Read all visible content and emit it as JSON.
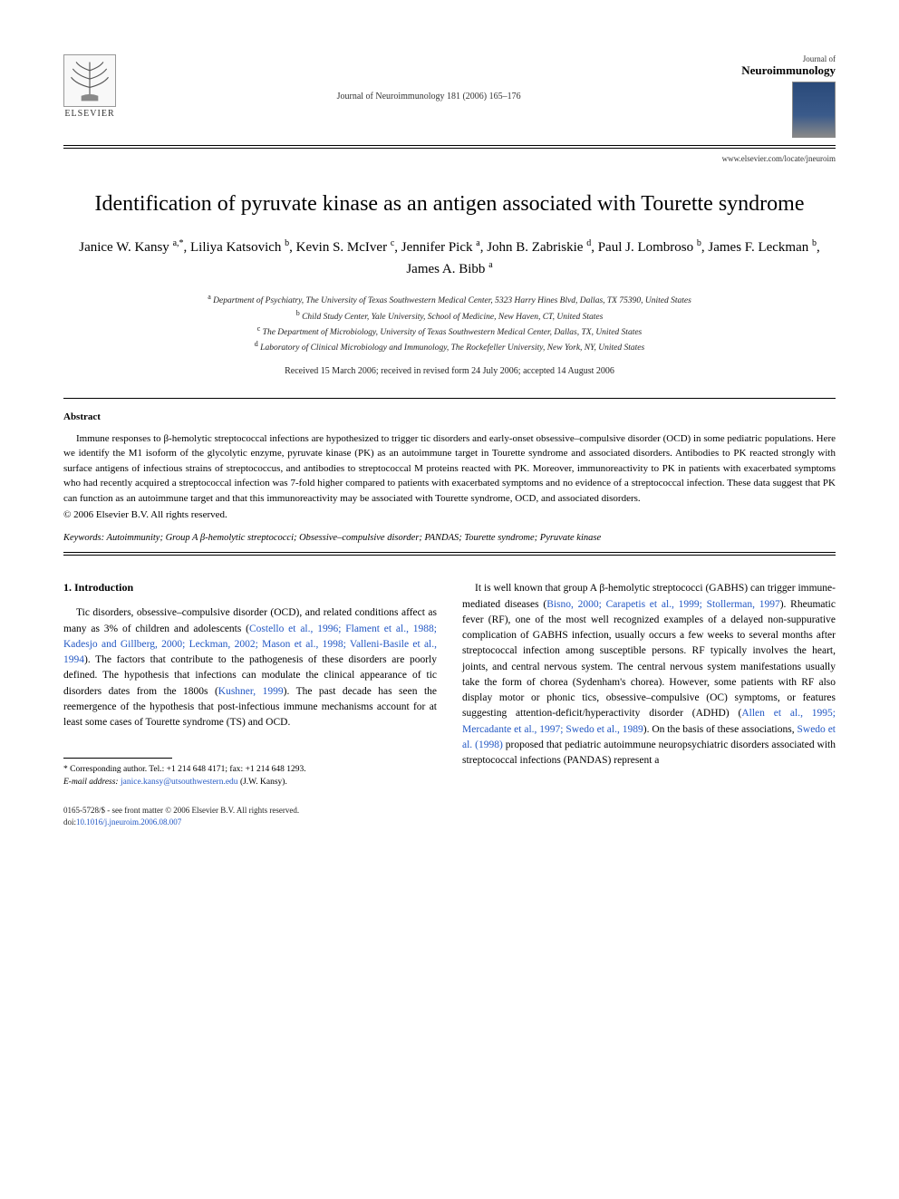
{
  "publisher": {
    "name": "ELSEVIER",
    "logo_name": "elsevier-tree-logo"
  },
  "journal": {
    "small_line": "Journal of",
    "name": "Neuroimmunology",
    "citation": "Journal of Neuroimmunology 181 (2006) 165–176",
    "locate_url": "www.elsevier.com/locate/jneuroim"
  },
  "article": {
    "title": "Identification of pyruvate kinase as an antigen associated with Tourette syndrome",
    "authors_html": "Janice W. Kansy <sup>a,*</sup>, Liliya Katsovich <sup>b</sup>, Kevin S. McIver <sup>c</sup>, Jennifer Pick <sup>a</sup>, John B. Zabriskie <sup>d</sup>, Paul J. Lombroso <sup>b</sup>, James F. Leckman <sup>b</sup>, James A. Bibb <sup>a</sup>",
    "affiliations": [
      "Department of Psychiatry, The University of Texas Southwestern Medical Center, 5323 Harry Hines Blvd, Dallas, TX 75390, United States",
      "Child Study Center, Yale University, School of Medicine, New Haven, CT, United States",
      "The Department of Microbiology, University of Texas Southwestern Medical Center, Dallas, TX, United States",
      "Laboratory of Clinical Microbiology and Immunology, The Rockefeller University, New York, NY, United States"
    ],
    "aff_markers": [
      "a",
      "b",
      "c",
      "d"
    ],
    "received": "Received 15 March 2006; received in revised form 24 July 2006; accepted 14 August 2006"
  },
  "abstract": {
    "heading": "Abstract",
    "body": "Immune responses to β-hemolytic streptococcal infections are hypothesized to trigger tic disorders and early-onset obsessive–compulsive disorder (OCD) in some pediatric populations. Here we identify the M1 isoform of the glycolytic enzyme, pyruvate kinase (PK) as an autoimmune target in Tourette syndrome and associated disorders. Antibodies to PK reacted strongly with surface antigens of infectious strains of streptococcus, and antibodies to streptococcal M proteins reacted with PK. Moreover, immunoreactivity to PK in patients with exacerbated symptoms who had recently acquired a streptococcal infection was 7-fold higher compared to patients with exacerbated symptoms and no evidence of a streptococcal infection. These data suggest that PK can function as an autoimmune target and that this immunoreactivity may be associated with Tourette syndrome, OCD, and associated disorders.",
    "copyright": "© 2006 Elsevier B.V. All rights reserved."
  },
  "keywords": {
    "label": "Keywords:",
    "text": " Autoimmunity; Group A β-hemolytic streptococci; Obsessive–compulsive disorder; PANDAS; Tourette syndrome; Pyruvate kinase"
  },
  "intro": {
    "heading": "1. Introduction",
    "col1_p1_pre": "Tic disorders, obsessive–compulsive disorder (OCD), and related conditions affect as many as 3% of children and adolescents (",
    "col1_p1_ref1": "Costello et al., 1996; Flament et al., 1988; Kadesjo and Gillberg, 2000; Leckman, 2002; Mason et al., 1998; Valleni-Basile et al., 1994",
    "col1_p1_mid": "). The factors that contribute to the pathogenesis of these disorders are poorly defined. The hypothesis that infections can modulate the clinical appearance of tic disorders dates from the 1800s (",
    "col1_p1_ref2": "Kushner, 1999",
    "col1_p1_post": "). The past decade has seen the reemergence of the hypothesis that post-infectious immune mechanisms account for at least some cases of Tourette syndrome (TS) and OCD.",
    "col2_p1_pre": "It is well known that group A β-hemolytic streptococci (GABHS) can trigger immune-mediated diseases (",
    "col2_p1_ref1": "Bisno, 2000; Carapetis et al., 1999; Stollerman, 1997",
    "col2_p1_mid1": "). Rheumatic fever (RF), one of the most well recognized examples of a delayed non-suppurative complication of GABHS infection, usually occurs a few weeks to several months after streptococcal infection among susceptible persons. RF typically involves the heart, joints, and central nervous system. The central nervous system manifestations usually take the form of chorea (Sydenham's chorea). However, some patients with RF also display motor or phonic tics, obsessive–compulsive (OC) symptoms, or features suggesting attention-deficit/hyperactivity disorder (ADHD) (",
    "col2_p1_ref2": "Allen et al., 1995; Mercadante et al., 1997; Swedo et al., 1989",
    "col2_p1_mid2": "). On the basis of these associations, ",
    "col2_p1_ref3": "Swedo et al. (1998)",
    "col2_p1_post": " proposed that pediatric autoimmune neuropsychiatric disorders associated with streptococcal infections (PANDAS) represent a"
  },
  "footnote": {
    "corresponding": "* Corresponding author. Tel.: +1 214 648 4171; fax: +1 214 648 1293.",
    "email_label": "E-mail address:",
    "email": "janice.kansy@utsouthwestern.edu",
    "email_author": " (J.W. Kansy)."
  },
  "footer": {
    "line1": "0165-5728/$ - see front matter © 2006 Elsevier B.V. All rights reserved.",
    "doi_label": "doi:",
    "doi": "10.1016/j.jneuroim.2006.08.007"
  },
  "colors": {
    "link": "#2358c4",
    "text": "#000000",
    "rule": "#000000"
  }
}
